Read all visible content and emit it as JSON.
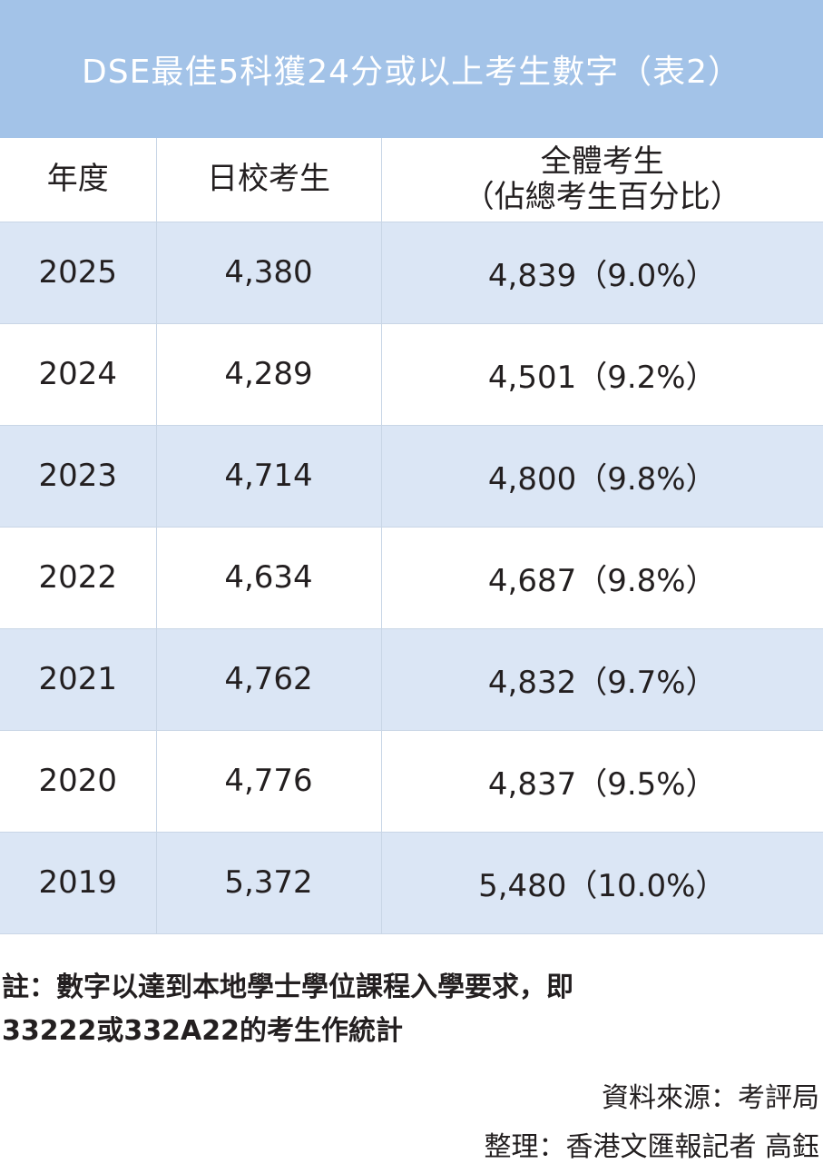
{
  "title": "DSE最佳5科獲24分或以上考生數字（表2）",
  "table": {
    "headers": {
      "year": "年度",
      "day_school": "日校考生",
      "all_line1": "全體考生",
      "all_line2": "（佔總考生百分比）"
    },
    "rows": [
      {
        "year": "2025",
        "day_school": "4,380",
        "all": "4,839（9.0%）"
      },
      {
        "year": "2024",
        "day_school": "4,289",
        "all": "4,501（9.2%）"
      },
      {
        "year": "2023",
        "day_school": "4,714",
        "all": "4,800（9.8%）"
      },
      {
        "year": "2022",
        "day_school": "4,634",
        "all": "4,687（9.8%）"
      },
      {
        "year": "2021",
        "day_school": "4,762",
        "all": "4,832（9.7%）"
      },
      {
        "year": "2020",
        "day_school": "4,776",
        "all": "4,837（9.5%）"
      },
      {
        "year": "2019",
        "day_school": "5,372",
        "all": "5,480（10.0%）"
      }
    ]
  },
  "footnote": {
    "line1": "註：數字以達到本地學士學位課程入學要求，即",
    "line2": "33222或332A22的考生作統計"
  },
  "credits": {
    "source": "資料來源：考評局",
    "compiled": "整理：香港文匯報記者 高鈺"
  },
  "colors": {
    "title_bg": "#a3c3e8",
    "row_alt_bg": "#dbe6f5"
  }
}
